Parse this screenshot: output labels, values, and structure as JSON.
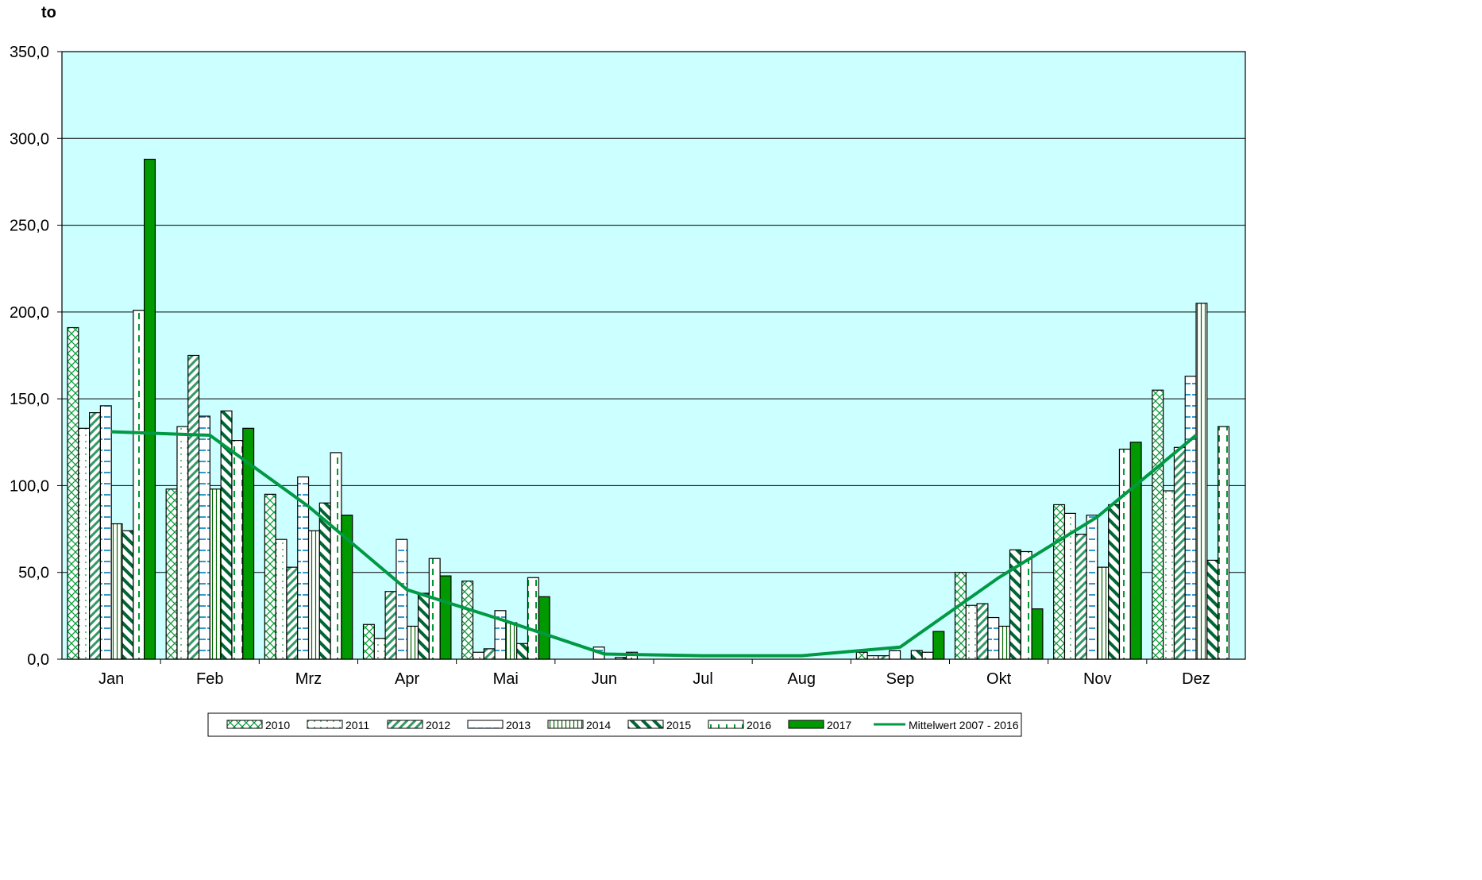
{
  "chart_data": {
    "type": "bar",
    "ylabel": "to",
    "ylim": [
      0,
      350
    ],
    "yticks": [
      "0,0",
      "50,0",
      "100,0",
      "150,0",
      "200,0",
      "250,0",
      "300,0",
      "350,0"
    ],
    "grid": true,
    "legend_position": "bottom",
    "plot_background": "#CCFFFF",
    "categories": [
      "Jan",
      "Feb",
      "Mrz",
      "Apr",
      "Mai",
      "Jun",
      "Jul",
      "Aug",
      "Sep",
      "Okt",
      "Nov",
      "Dez"
    ],
    "series": [
      {
        "name": "2010",
        "pattern": "crosshatch",
        "color": "#009933",
        "values": [
          191,
          98,
          95,
          20,
          45,
          0,
          0,
          0,
          4,
          50,
          89,
          155
        ]
      },
      {
        "name": "2011",
        "pattern": "dots",
        "color": "#009933",
        "values": [
          133,
          134,
          69,
          12,
          4,
          0,
          0,
          0,
          2,
          31,
          84,
          97
        ]
      },
      {
        "name": "2012",
        "pattern": "diagonal",
        "color": "#339966",
        "values": [
          142,
          175,
          53,
          39,
          6,
          0,
          0,
          0,
          2,
          32,
          72,
          122
        ]
      },
      {
        "name": "2013",
        "pattern": "dashes",
        "color": "#3399CC",
        "values": [
          146,
          140,
          105,
          69,
          28,
          7,
          0,
          0,
          5,
          24,
          83,
          163
        ]
      },
      {
        "name": "2014",
        "pattern": "vertical-lines",
        "color": "#006600",
        "values": [
          78,
          98,
          74,
          19,
          21,
          0,
          0,
          0,
          0,
          19,
          53,
          205
        ]
      },
      {
        "name": "2015",
        "pattern": "wide-diagonal",
        "color": "#006633",
        "values": [
          74,
          143,
          90,
          38,
          9,
          1,
          0,
          0,
          5,
          63,
          89,
          57
        ]
      },
      {
        "name": "2016",
        "pattern": "dashed-vertical",
        "color": "#009933",
        "values": [
          201,
          126,
          119,
          58,
          47,
          4,
          0,
          0,
          4,
          62,
          121,
          134
        ]
      },
      {
        "name": "2017",
        "pattern": "solid",
        "color": "#009900",
        "values": [
          288,
          133,
          83,
          48,
          36,
          null,
          null,
          null,
          16,
          29,
          125,
          null
        ]
      }
    ],
    "line_series": {
      "name": "Mittelwert 2007 - 2016",
      "color": "#009944",
      "values": [
        131,
        129,
        88,
        40,
        22,
        3,
        2,
        2,
        7,
        47,
        82,
        129
      ]
    }
  }
}
